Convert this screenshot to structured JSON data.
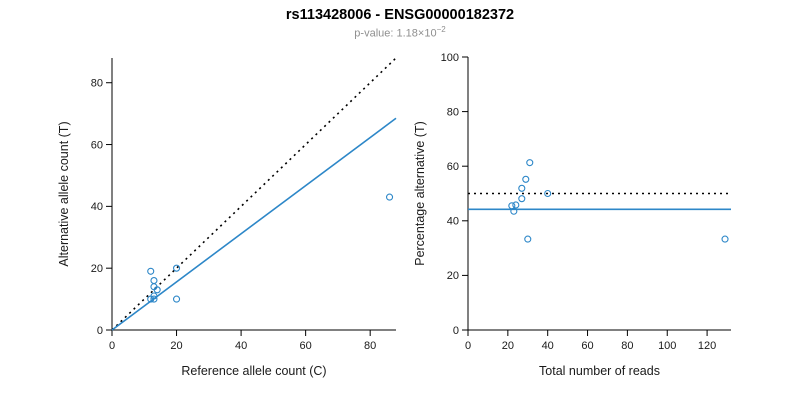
{
  "header": {
    "title": "rs113428006 - ENSG00000182372",
    "subtitle_label": "p-value: ",
    "pvalue_base": "1.18×10",
    "pvalue_exponent": "−2"
  },
  "colors": {
    "point_blue": "#2d87c8",
    "fit_blue": "#2d87c8",
    "dotted_black": "#000000",
    "subtitle_gray": "#8f8f8f",
    "axis_text": "#1a1a1a"
  },
  "chart_data": [
    {
      "type": "scatter",
      "xlabel": "Reference allele count (C)",
      "ylabel": "Alternative allele count (T)",
      "xlim": [
        0,
        88
      ],
      "ylim": [
        0,
        88
      ],
      "xticks": [
        0,
        20,
        40,
        60,
        80
      ],
      "yticks": [
        0,
        20,
        40,
        60,
        80
      ],
      "grid": false,
      "points": [
        [
          12,
          19
        ],
        [
          13,
          16
        ],
        [
          13,
          14
        ],
        [
          14,
          13
        ],
        [
          13,
          11
        ],
        [
          12,
          10
        ],
        [
          13,
          10
        ],
        [
          20,
          10
        ],
        [
          20,
          20
        ],
        [
          86,
          43
        ]
      ],
      "lines": [
        {
          "name": "identity-line",
          "style": "dotted",
          "color": "#000000",
          "from": [
            0,
            0
          ],
          "to": [
            88,
            88
          ]
        },
        {
          "name": "regression-line",
          "style": "solid",
          "color": "#2d87c8",
          "from": [
            0,
            0
          ],
          "to": [
            88,
            68.5
          ]
        }
      ]
    },
    {
      "type": "scatter",
      "xlabel": "Total number of reads",
      "ylabel": "Percentage alternative (T)",
      "xlim": [
        0,
        132
      ],
      "ylim": [
        0,
        100
      ],
      "xticks": [
        0,
        20,
        40,
        60,
        80,
        100,
        120
      ],
      "yticks": [
        0,
        20,
        40,
        60,
        80,
        100
      ],
      "grid": false,
      "points": [
        [
          31,
          61.3
        ],
        [
          29,
          55.2
        ],
        [
          27,
          51.9
        ],
        [
          27,
          48.1
        ],
        [
          24,
          45.8
        ],
        [
          22,
          45.5
        ],
        [
          23,
          43.5
        ],
        [
          30,
          33.3
        ],
        [
          40,
          50
        ],
        [
          129,
          33.3
        ]
      ],
      "lines": [
        {
          "name": "expected-50-line",
          "style": "dotted",
          "color": "#000000",
          "from": [
            0,
            50
          ],
          "to": [
            132,
            50
          ]
        },
        {
          "name": "estimate-line",
          "style": "solid",
          "color": "#2d87c8",
          "from": [
            0,
            44.2
          ],
          "to": [
            132,
            44.2
          ]
        }
      ]
    }
  ]
}
